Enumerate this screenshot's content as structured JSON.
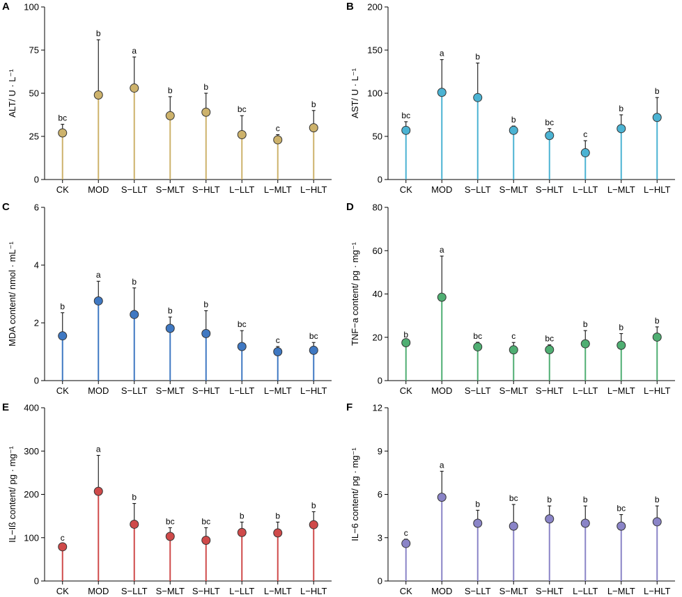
{
  "chart_data": [
    {
      "panel": "A",
      "type": "lollipop",
      "categories": [
        "CK",
        "MOD",
        "S−LLT",
        "S−MLT",
        "S−HLT",
        "L−LLT",
        "L−MLT",
        "L−HLT"
      ],
      "values": [
        27,
        49,
        53,
        37,
        39,
        26,
        23,
        30
      ],
      "errors": [
        5,
        32,
        18,
        11,
        11,
        11,
        3,
        10
      ],
      "letters": [
        "bc",
        "b",
        "a",
        "b",
        "b",
        "bc",
        "c",
        "b"
      ],
      "ylabel": "ALT/ U · L⁻¹",
      "ylim": [
        0,
        100
      ],
      "yticks": [
        0,
        25,
        50,
        75,
        100
      ],
      "color": "#cdb26b"
    },
    {
      "panel": "B",
      "type": "lollipop",
      "categories": [
        "CK",
        "MOD",
        "S−LLT",
        "S−MLT",
        "S−HLT",
        "L−LLT",
        "L−MLT",
        "L−HLT"
      ],
      "values": [
        57,
        101,
        95,
        57,
        51,
        31,
        59,
        72
      ],
      "errors": [
        10,
        38,
        40,
        5,
        8,
        14,
        16,
        23
      ],
      "letters": [
        "bc",
        "a",
        "b",
        "b",
        "bc",
        "c",
        "b",
        "b"
      ],
      "ylabel": "AST/ U · L⁻¹",
      "ylim": [
        0,
        200
      ],
      "yticks": [
        0,
        50,
        100,
        150,
        200
      ],
      "color": "#4bb3d3"
    },
    {
      "panel": "C",
      "type": "lollipop",
      "categories": [
        "CK",
        "MOD",
        "S−LLT",
        "S−MLT",
        "S−HLT",
        "L−LLT",
        "L−MLT",
        "L−HLT"
      ],
      "values": [
        1.55,
        2.76,
        2.29,
        1.81,
        1.63,
        1.18,
        1.0,
        1.05
      ],
      "errors": [
        0.8,
        0.68,
        0.92,
        0.39,
        0.79,
        0.55,
        0.18,
        0.27
      ],
      "letters": [
        "b",
        "a",
        "b",
        "b",
        "b",
        "bc",
        "c",
        "bc"
      ],
      "ylabel": "MDA content/ nmol · mL⁻¹",
      "ylim": [
        0,
        6
      ],
      "yticks": [
        0,
        2,
        4,
        6
      ],
      "color": "#3f78c2"
    },
    {
      "panel": "D",
      "type": "lollipop",
      "categories": [
        "CK",
        "MOD",
        "S−LLT",
        "S−MLT",
        "S−HLT",
        "L−LLT",
        "L−MLT",
        "L−HLT"
      ],
      "values": [
        17.5,
        38.5,
        15.6,
        14.2,
        14.3,
        17.0,
        16.3,
        20.1
      ],
      "errors": [
        0.8,
        19,
        2.1,
        3.4,
        2.2,
        6.1,
        5.4,
        4.7
      ],
      "letters": [
        "b",
        "a",
        "bc",
        "c",
        "bc",
        "b",
        "b",
        "b"
      ],
      "ylabel": "TNF−a content/ pg · mg⁻¹",
      "ylim": [
        0,
        80
      ],
      "yticks": [
        0,
        20,
        40,
        60,
        80
      ],
      "color": "#4fae72"
    },
    {
      "panel": "E",
      "type": "lollipop",
      "categories": [
        "CK",
        "MOD",
        "S−LLT",
        "S−MLT",
        "S−HLT",
        "L−LLT",
        "L−MLT",
        "L−HLT"
      ],
      "values": [
        79,
        207,
        131,
        103,
        94,
        112,
        111,
        130
      ],
      "errors": [
        6,
        83,
        48,
        20,
        29,
        24,
        25,
        30
      ],
      "letters": [
        "c",
        "a",
        "b",
        "bc",
        "bc",
        "b",
        "b",
        "b"
      ],
      "ylabel": "IL−Iß content/ pg · mg⁻¹",
      "ylim": [
        0,
        400
      ],
      "yticks": [
        0,
        100,
        200,
        300,
        400
      ],
      "color": "#cf4a4a"
    },
    {
      "panel": "F",
      "type": "lollipop",
      "categories": [
        "CK",
        "MOD",
        "S−LLT",
        "S−MLT",
        "S−HLT",
        "L−LLT",
        "L−MLT",
        "L−HLT"
      ],
      "values": [
        2.6,
        5.8,
        4.0,
        3.8,
        4.3,
        4.0,
        3.8,
        4.1
      ],
      "errors": [
        0.3,
        1.8,
        0.9,
        1.5,
        0.9,
        1.2,
        0.8,
        1.1
      ],
      "letters": [
        "c",
        "a",
        "b",
        "bc",
        "b",
        "b",
        "bc",
        "b"
      ],
      "ylabel": "IL−6 content/ pg · mg⁻¹",
      "ylim": [
        0,
        12
      ],
      "yticks": [
        0,
        3,
        6,
        9,
        12
      ],
      "color": "#8a84c7"
    }
  ]
}
